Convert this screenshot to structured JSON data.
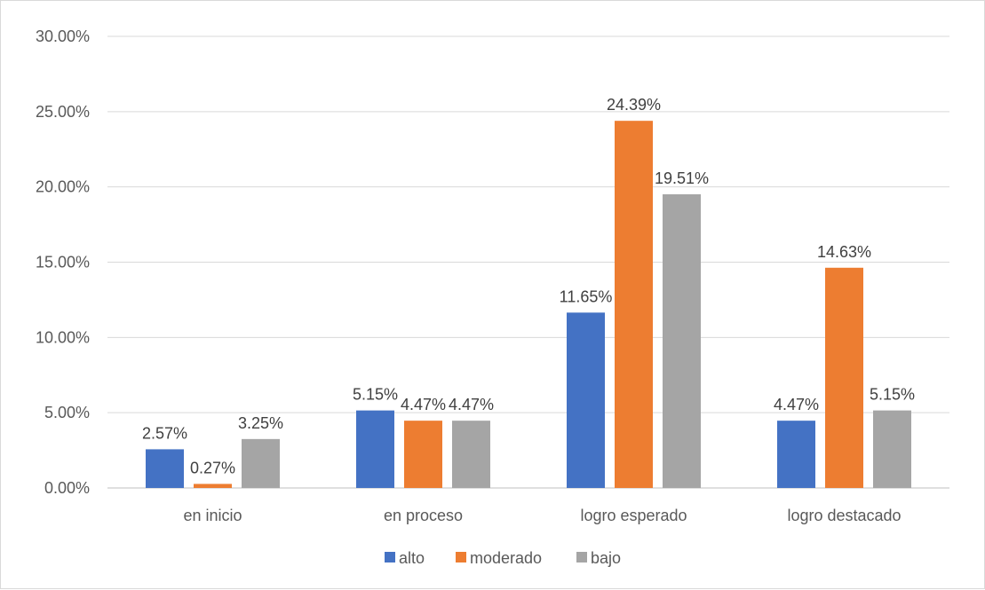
{
  "chart_data": {
    "type": "bar",
    "categories": [
      "en inicio",
      "en proceso",
      "logro esperado",
      "logro destacado"
    ],
    "series": [
      {
        "name": "alto",
        "color": "#4472c4",
        "values": [
          2.57,
          5.15,
          11.65,
          4.47
        ],
        "labels": [
          "2.57%",
          "5.15%",
          "11.65%",
          "4.47%"
        ]
      },
      {
        "name": "moderado",
        "color": "#ed7d31",
        "values": [
          0.27,
          4.47,
          24.39,
          14.63
        ],
        "labels": [
          "0.27%",
          "4.47%",
          "24.39%",
          "14.63%"
        ]
      },
      {
        "name": "bajo",
        "color": "#a5a5a5",
        "values": [
          3.25,
          4.47,
          19.51,
          5.15
        ],
        "labels": [
          "3.25%",
          "4.47%",
          "19.51%",
          "5.15%"
        ]
      }
    ],
    "ylim": [
      0,
      30
    ],
    "yticks": [
      0,
      5,
      10,
      15,
      20,
      25,
      30
    ],
    "ytick_labels": [
      "0.00%",
      "5.00%",
      "10.00%",
      "15.00%",
      "20.00%",
      "25.00%",
      "30.00%"
    ],
    "grid": true,
    "legend_position": "bottom"
  }
}
